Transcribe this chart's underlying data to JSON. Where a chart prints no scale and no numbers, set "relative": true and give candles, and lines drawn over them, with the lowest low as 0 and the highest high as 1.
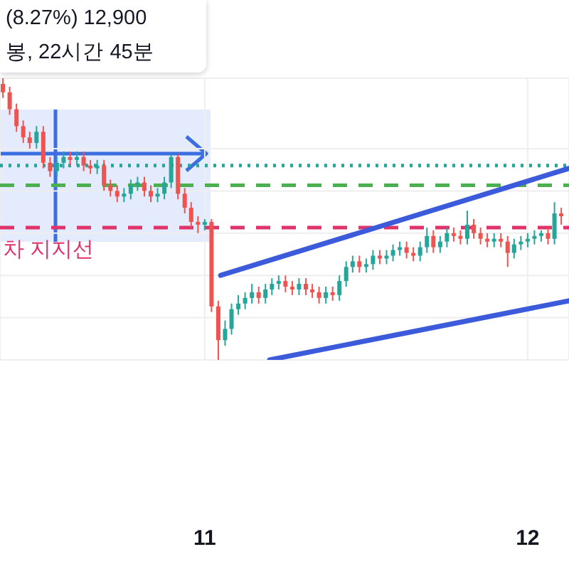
{
  "chart_data": {
    "type": "candlestick",
    "relative": true,
    "x": [
      10.375,
      10.396,
      10.417,
      10.438,
      10.458,
      10.479,
      10.5,
      10.521,
      10.542,
      10.563,
      10.583,
      10.604,
      10.625,
      10.646,
      10.667,
      10.688,
      10.708,
      10.729,
      10.75,
      10.771,
      10.792,
      10.813,
      10.833,
      10.854,
      10.875,
      10.896,
      10.917,
      10.938,
      10.958,
      10.979,
      11.0,
      11.021,
      11.042,
      11.063,
      11.083,
      11.104,
      11.125,
      11.146,
      11.167,
      11.188,
      11.208,
      11.229,
      11.25,
      11.271,
      11.292,
      11.313,
      11.333,
      11.354,
      11.375,
      11.396,
      11.417,
      11.438,
      11.458,
      11.479,
      11.5,
      11.521,
      11.542,
      11.563,
      11.583,
      11.604,
      11.625,
      11.646,
      11.667,
      11.688,
      11.708,
      11.729,
      11.75,
      11.771,
      11.792,
      11.813,
      11.833,
      11.854,
      11.875,
      11.896,
      11.917,
      11.938,
      11.958,
      11.979,
      12.0,
      12.021,
      12.042,
      12.063,
      12.083,
      12.104
    ],
    "ohlc": [
      [
        0.98,
        1.0,
        0.93,
        0.95
      ],
      [
        0.95,
        0.97,
        0.87,
        0.89
      ],
      [
        0.89,
        0.91,
        0.81,
        0.83
      ],
      [
        0.83,
        0.85,
        0.77,
        0.79
      ],
      [
        0.79,
        0.81,
        0.75,
        0.77
      ],
      [
        0.77,
        0.83,
        0.75,
        0.81
      ],
      [
        0.81,
        0.83,
        0.68,
        0.7
      ],
      [
        0.7,
        0.72,
        0.65,
        0.67
      ],
      [
        0.67,
        0.72,
        0.65,
        0.7
      ],
      [
        0.7,
        0.74,
        0.68,
        0.72
      ],
      [
        0.72,
        0.74,
        0.69,
        0.71
      ],
      [
        0.71,
        0.74,
        0.69,
        0.72
      ],
      [
        0.72,
        0.74,
        0.67,
        0.69
      ],
      [
        0.69,
        0.71,
        0.66,
        0.68
      ],
      [
        0.68,
        0.71,
        0.66,
        0.69
      ],
      [
        0.69,
        0.71,
        0.6,
        0.62
      ],
      [
        0.62,
        0.64,
        0.58,
        0.6
      ],
      [
        0.6,
        0.62,
        0.56,
        0.58
      ],
      [
        0.58,
        0.61,
        0.56,
        0.59
      ],
      [
        0.59,
        0.64,
        0.57,
        0.62
      ],
      [
        0.62,
        0.65,
        0.6,
        0.63
      ],
      [
        0.63,
        0.65,
        0.58,
        0.6
      ],
      [
        0.6,
        0.62,
        0.56,
        0.58
      ],
      [
        0.58,
        0.61,
        0.56,
        0.59
      ],
      [
        0.59,
        0.65,
        0.57,
        0.63
      ],
      [
        0.63,
        0.73,
        0.61,
        0.72
      ],
      [
        0.72,
        0.73,
        0.57,
        0.59
      ],
      [
        0.59,
        0.61,
        0.52,
        0.54
      ],
      [
        0.54,
        0.56,
        0.47,
        0.49
      ],
      [
        0.49,
        0.51,
        0.45,
        0.48
      ],
      [
        0.48,
        0.5,
        0.46,
        0.49
      ],
      [
        0.49,
        0.5,
        0.17,
        0.19
      ],
      [
        0.19,
        0.21,
        0.0,
        0.07
      ],
      [
        0.07,
        0.14,
        0.05,
        0.11
      ],
      [
        0.11,
        0.2,
        0.09,
        0.18
      ],
      [
        0.18,
        0.23,
        0.16,
        0.2
      ],
      [
        0.2,
        0.24,
        0.18,
        0.22
      ],
      [
        0.22,
        0.27,
        0.2,
        0.24
      ],
      [
        0.24,
        0.26,
        0.2,
        0.22
      ],
      [
        0.22,
        0.27,
        0.2,
        0.25
      ],
      [
        0.25,
        0.29,
        0.23,
        0.27
      ],
      [
        0.27,
        0.3,
        0.25,
        0.28
      ],
      [
        0.28,
        0.3,
        0.24,
        0.26
      ],
      [
        0.26,
        0.28,
        0.23,
        0.25
      ],
      [
        0.25,
        0.29,
        0.23,
        0.27
      ],
      [
        0.27,
        0.29,
        0.23,
        0.25
      ],
      [
        0.25,
        0.27,
        0.22,
        0.24
      ],
      [
        0.24,
        0.26,
        0.2,
        0.22
      ],
      [
        0.22,
        0.26,
        0.2,
        0.24
      ],
      [
        0.24,
        0.26,
        0.21,
        0.23
      ],
      [
        0.23,
        0.3,
        0.21,
        0.28
      ],
      [
        0.28,
        0.35,
        0.26,
        0.33
      ],
      [
        0.33,
        0.37,
        0.31,
        0.35
      ],
      [
        0.35,
        0.37,
        0.31,
        0.33
      ],
      [
        0.33,
        0.36,
        0.31,
        0.34
      ],
      [
        0.34,
        0.39,
        0.32,
        0.37
      ],
      [
        0.37,
        0.39,
        0.34,
        0.36
      ],
      [
        0.36,
        0.39,
        0.34,
        0.37
      ],
      [
        0.37,
        0.41,
        0.35,
        0.39
      ],
      [
        0.39,
        0.42,
        0.37,
        0.4
      ],
      [
        0.4,
        0.42,
        0.36,
        0.38
      ],
      [
        0.38,
        0.4,
        0.35,
        0.37
      ],
      [
        0.37,
        0.42,
        0.35,
        0.4
      ],
      [
        0.4,
        0.47,
        0.38,
        0.44
      ],
      [
        0.44,
        0.46,
        0.38,
        0.4
      ],
      [
        0.4,
        0.44,
        0.38,
        0.42
      ],
      [
        0.42,
        0.47,
        0.4,
        0.45
      ],
      [
        0.45,
        0.47,
        0.42,
        0.44
      ],
      [
        0.44,
        0.46,
        0.41,
        0.43
      ],
      [
        0.43,
        0.53,
        0.41,
        0.48
      ],
      [
        0.48,
        0.5,
        0.43,
        0.45
      ],
      [
        0.45,
        0.47,
        0.41,
        0.43
      ],
      [
        0.43,
        0.45,
        0.4,
        0.42
      ],
      [
        0.42,
        0.45,
        0.4,
        0.43
      ],
      [
        0.43,
        0.45,
        0.4,
        0.42
      ],
      [
        0.42,
        0.44,
        0.33,
        0.38
      ],
      [
        0.38,
        0.43,
        0.36,
        0.41
      ],
      [
        0.41,
        0.44,
        0.39,
        0.42
      ],
      [
        0.42,
        0.45,
        0.4,
        0.43
      ],
      [
        0.43,
        0.46,
        0.41,
        0.44
      ],
      [
        0.44,
        0.46,
        0.42,
        0.45
      ],
      [
        0.45,
        0.47,
        0.41,
        0.43
      ],
      [
        0.43,
        0.56,
        0.41,
        0.52
      ],
      [
        0.52,
        0.54,
        0.48,
        0.51
      ]
    ],
    "series": [
      {
        "type": "line",
        "color": "#3b5bdb",
        "x": [
          11.049,
          12.128
        ],
        "values": [
          0.3,
          0.68
        ]
      },
      {
        "type": "line",
        "color": "#3b5bdb",
        "x": [
          11.201,
          12.128
        ],
        "values": [
          0.0,
          0.21
        ]
      }
    ],
    "xlim": [
      10.366,
      12.128
    ],
    "xticks": [
      11,
      12
    ],
    "grid": true,
    "ref_lines": [
      {
        "axis": "y",
        "value": 0.69,
        "color": "#26a69a",
        "line_style": "dotted"
      },
      {
        "axis": "y",
        "value": 0.62,
        "color": "#4caf50",
        "line_style": "dashed"
      },
      {
        "axis": "y",
        "value": 0.47,
        "color": "#e0336a",
        "line_style": "dashed",
        "label": "차 지지선"
      }
    ],
    "annotations": [
      "(8.27%) 12,900",
      "봉, 22시간 45분"
    ]
  }
}
